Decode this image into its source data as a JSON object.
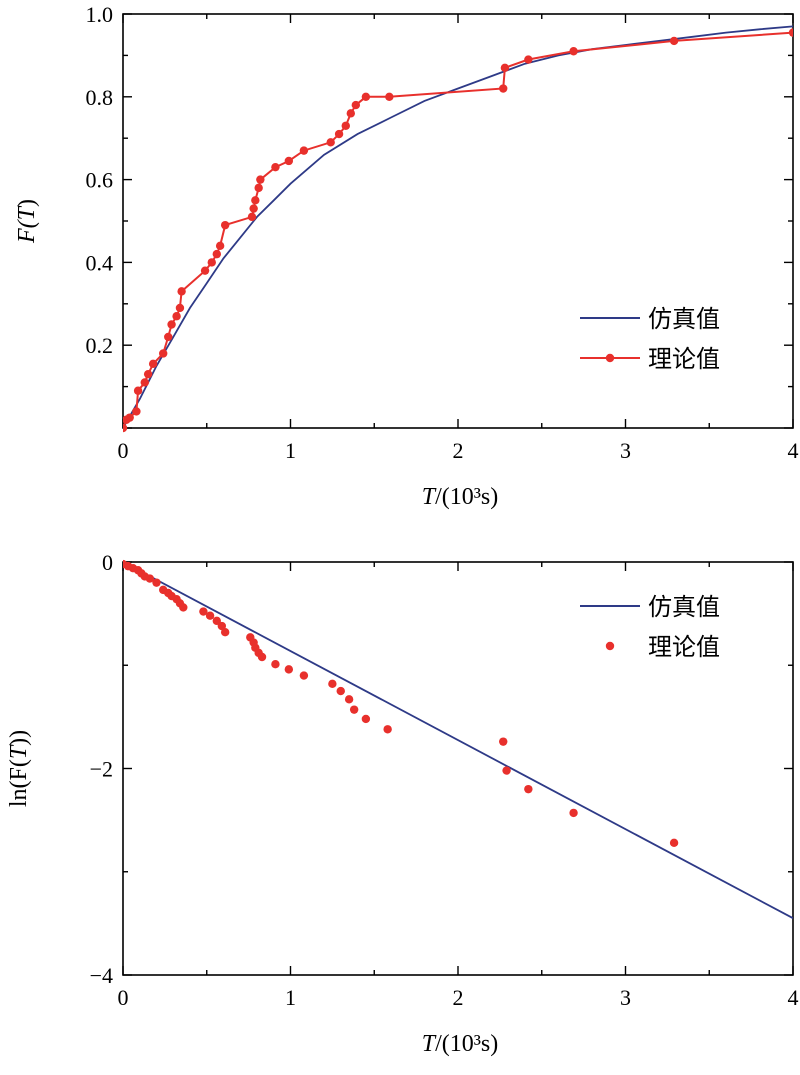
{
  "colors": {
    "simulated": "#2e3a87",
    "theoretical": "#e8302c",
    "axis": "#000000"
  },
  "chart_data": [
    {
      "type": "line",
      "xlabel": "T/(10³s)",
      "xlabel_parts": {
        "var": "T",
        "unit": "/(10³s)"
      },
      "ylabel": "F(T)",
      "ylabel_parts": {
        "pre": "F(",
        "var": "T",
        "post": ")"
      },
      "xlim": [
        0,
        4
      ],
      "ylim": [
        0,
        1.0
      ],
      "xticks": [
        0,
        1,
        2,
        3,
        4
      ],
      "xtick_labels": [
        "0",
        "1",
        "2",
        "3",
        "4"
      ],
      "yticks": [
        0.2,
        0.4,
        0.6,
        0.8,
        1.0
      ],
      "ytick_labels": [
        "0.2",
        "0.4",
        "0.6",
        "0.8",
        "1.0"
      ],
      "legend": {
        "position": "right",
        "entries": [
          "仿真值",
          "理论值"
        ]
      },
      "series": [
        {
          "name": "仿真值",
          "style": "line",
          "x": [
            0,
            0.1,
            0.2,
            0.3,
            0.4,
            0.5,
            0.6,
            0.7,
            0.8,
            0.9,
            1.0,
            1.2,
            1.4,
            1.6,
            1.8,
            2.0,
            2.2,
            2.4,
            2.6,
            2.8,
            3.0,
            3.2,
            3.4,
            3.6,
            3.8,
            4.0
          ],
          "y": [
            0,
            0.07,
            0.15,
            0.22,
            0.29,
            0.35,
            0.41,
            0.46,
            0.51,
            0.55,
            0.59,
            0.66,
            0.71,
            0.75,
            0.79,
            0.82,
            0.85,
            0.88,
            0.9,
            0.915,
            0.925,
            0.935,
            0.945,
            0.955,
            0.963,
            0.97
          ]
        },
        {
          "name": "理论值",
          "style": "line+marker",
          "x": [
            0,
            0.02,
            0.04,
            0.08,
            0.09,
            0.13,
            0.15,
            0.18,
            0.24,
            0.27,
            0.29,
            0.32,
            0.34,
            0.35,
            0.49,
            0.53,
            0.56,
            0.58,
            0.61,
            0.77,
            0.78,
            0.79,
            0.81,
            0.82,
            0.91,
            0.99,
            1.08,
            1.24,
            1.29,
            1.33,
            1.36,
            1.39,
            1.45,
            1.59,
            2.27,
            2.28,
            2.42,
            2.69,
            3.29,
            4.0
          ],
          "y": [
            0,
            0.02,
            0.025,
            0.04,
            0.09,
            0.11,
            0.13,
            0.155,
            0.18,
            0.22,
            0.25,
            0.27,
            0.29,
            0.33,
            0.38,
            0.4,
            0.42,
            0.44,
            0.49,
            0.51,
            0.53,
            0.55,
            0.58,
            0.6,
            0.63,
            0.645,
            0.67,
            0.69,
            0.71,
            0.73,
            0.76,
            0.78,
            0.8,
            0.8,
            0.82,
            0.87,
            0.89,
            0.91,
            0.935,
            0.955
          ]
        }
      ]
    },
    {
      "type": "line",
      "xlabel": "T/(10³s)",
      "xlabel_parts": {
        "var": "T",
        "unit": "/(10³s)"
      },
      "ylabel": "ln(F(T))",
      "ylabel_parts": {
        "pre": "ln(F(",
        "var": "T",
        "post": "))"
      },
      "xlim": [
        0,
        4
      ],
      "ylim": [
        -4,
        0
      ],
      "xticks": [
        0,
        1,
        2,
        3,
        4
      ],
      "xtick_labels": [
        "0",
        "1",
        "2",
        "3",
        "4"
      ],
      "yticks": [
        0,
        -2,
        -4
      ],
      "ytick_labels": [
        "0",
        "−2",
        "−4"
      ],
      "legend": {
        "position": "top-right",
        "entries": [
          "仿真值",
          "理论值"
        ]
      },
      "series": [
        {
          "name": "仿真值",
          "style": "line",
          "x": [
            0,
            4.0
          ],
          "y": [
            0,
            -3.45
          ]
        },
        {
          "name": "理论值",
          "style": "marker",
          "x": [
            0,
            0.03,
            0.06,
            0.09,
            0.11,
            0.13,
            0.16,
            0.2,
            0.24,
            0.27,
            0.29,
            0.32,
            0.34,
            0.36,
            0.48,
            0.52,
            0.56,
            0.59,
            0.61,
            0.76,
            0.78,
            0.79,
            0.81,
            0.83,
            0.91,
            0.99,
            1.08,
            1.25,
            1.3,
            1.35,
            1.38,
            1.45,
            1.58,
            2.27,
            2.29,
            2.42,
            2.69,
            3.29
          ],
          "y": [
            -0.02,
            -0.04,
            -0.06,
            -0.08,
            -0.11,
            -0.14,
            -0.16,
            -0.2,
            -0.27,
            -0.3,
            -0.33,
            -0.36,
            -0.4,
            -0.44,
            -0.48,
            -0.52,
            -0.57,
            -0.62,
            -0.68,
            -0.73,
            -0.78,
            -0.83,
            -0.88,
            -0.92,
            -0.99,
            -1.04,
            -1.1,
            -1.18,
            -1.25,
            -1.33,
            -1.43,
            -1.52,
            -1.62,
            -1.74,
            -2.02,
            -2.2,
            -2.43,
            -2.72
          ]
        }
      ]
    }
  ]
}
